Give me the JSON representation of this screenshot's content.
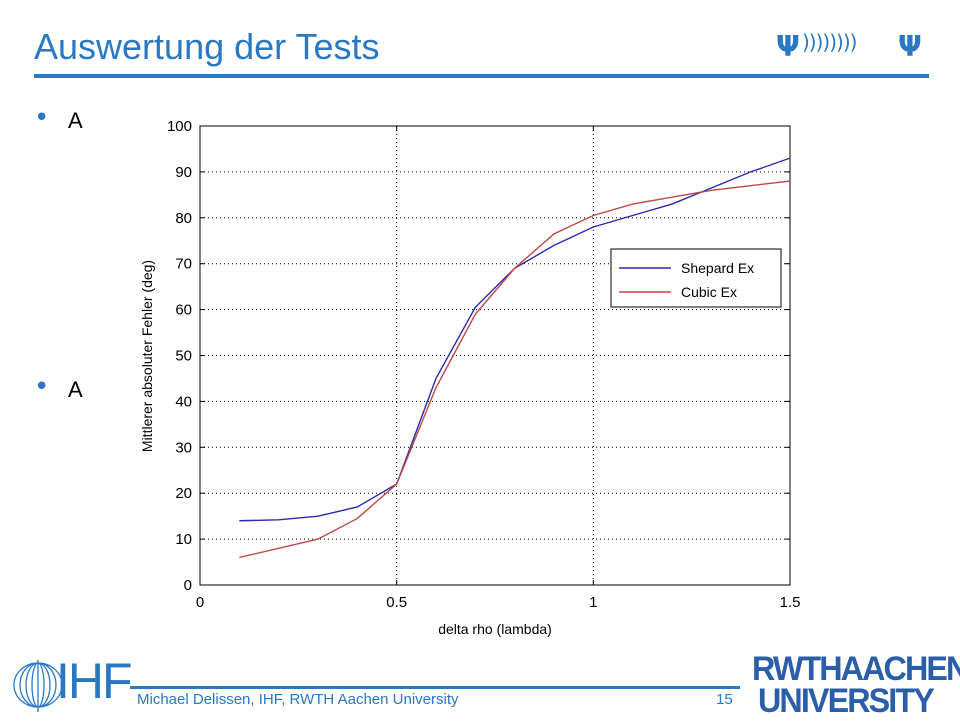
{
  "slide": {
    "title": "Auswertung der Tests",
    "bullet_symbol": "•",
    "bullet_fragments": [
      "A",
      "A"
    ],
    "antenna_glyph": "Ψ",
    "waves_glyph": "))))))))",
    "footer": "Michael Delissen, IHF, RWTH Aachen University",
    "page_number": "15",
    "logo_left": "IHF",
    "logo_right_line1": "RWTHAACHEN",
    "logo_right_line2": "UNIVERSITY",
    "accent_color": "#2a78c4"
  },
  "chart_data": {
    "type": "line",
    "xlabel": "delta rho (lambda)",
    "ylabel": "Mittlerer absoluter Fehler (deg)",
    "xlim": [
      0,
      1.5
    ],
    "ylim": [
      0,
      100
    ],
    "xticks": [
      "0",
      "0.5",
      "1",
      "1.5"
    ],
    "yticks": [
      "0",
      "10",
      "20",
      "30",
      "40",
      "50",
      "60",
      "70",
      "80",
      "90",
      "100"
    ],
    "grid": true,
    "legend_position": "right-middle",
    "x": [
      0.1,
      0.2,
      0.3,
      0.4,
      0.5,
      0.6,
      0.7,
      0.8,
      0.9,
      1.0,
      1.1,
      1.2,
      1.3,
      1.4,
      1.5
    ],
    "series": [
      {
        "name": "Shepard Ex",
        "color": "#2b2bb0",
        "values": [
          14,
          14.2,
          15,
          17,
          22,
          45,
          60.5,
          69,
          74,
          78,
          80.5,
          83,
          86.5,
          90,
          93
        ]
      },
      {
        "name": "Cubic Ex",
        "color": "#c04848",
        "values": [
          6,
          8,
          10,
          14.5,
          22,
          43,
          59,
          69,
          76.5,
          80.5,
          83,
          84.5,
          86,
          87,
          88
        ]
      }
    ]
  }
}
